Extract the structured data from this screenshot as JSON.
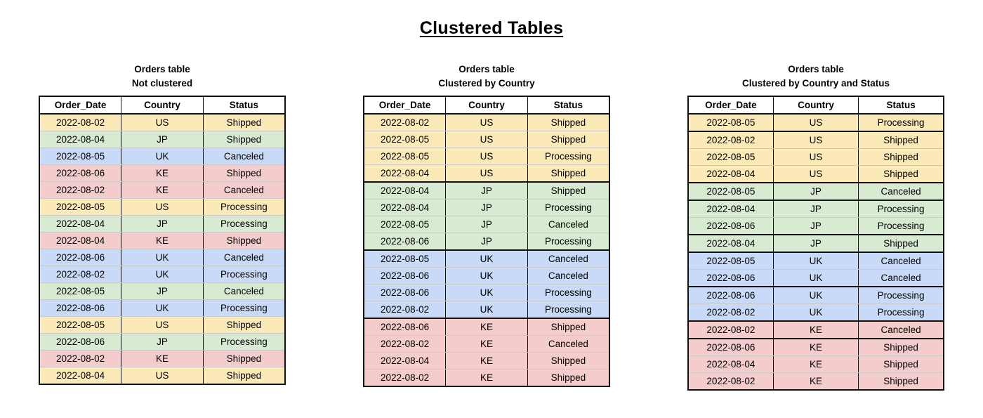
{
  "page_title": "Clustered Tables",
  "row_colors": {
    "US": "#fce9b8",
    "JP": "#d9ead3",
    "UK": "#c9daf8",
    "KE": "#f4cccc"
  },
  "border_colors": {
    "dark": "#111111",
    "light": "#c9c9c9"
  },
  "tables": [
    {
      "caption_line1": "Orders table",
      "caption_line2": "Not clustered",
      "columns": [
        "Order_Date",
        "Country",
        "Status"
      ],
      "rows": [
        {
          "date": "2022-08-02",
          "country": "US",
          "status": "Shipped",
          "cluster_start": false
        },
        {
          "date": "2022-08-04",
          "country": "JP",
          "status": "Shipped",
          "cluster_start": false
        },
        {
          "date": "2022-08-05",
          "country": "UK",
          "status": "Canceled",
          "cluster_start": false
        },
        {
          "date": "2022-08-06",
          "country": "KE",
          "status": "Shipped",
          "cluster_start": false
        },
        {
          "date": "2022-08-02",
          "country": "KE",
          "status": "Canceled",
          "cluster_start": false
        },
        {
          "date": "2022-08-05",
          "country": "US",
          "status": "Processing",
          "cluster_start": false
        },
        {
          "date": "2022-08-04",
          "country": "JP",
          "status": "Processing",
          "cluster_start": false
        },
        {
          "date": "2022-08-04",
          "country": "KE",
          "status": "Shipped",
          "cluster_start": false
        },
        {
          "date": "2022-08-06",
          "country": "UK",
          "status": "Canceled",
          "cluster_start": false
        },
        {
          "date": "2022-08-02",
          "country": "UK",
          "status": "Processing",
          "cluster_start": false
        },
        {
          "date": "2022-08-05",
          "country": "JP",
          "status": "Canceled",
          "cluster_start": false
        },
        {
          "date": "2022-08-06",
          "country": "UK",
          "status": "Processing",
          "cluster_start": false
        },
        {
          "date": "2022-08-05",
          "country": "US",
          "status": "Shipped",
          "cluster_start": false
        },
        {
          "date": "2022-08-06",
          "country": "JP",
          "status": "Processing",
          "cluster_start": false
        },
        {
          "date": "2022-08-02",
          "country": "KE",
          "status": "Shipped",
          "cluster_start": false
        },
        {
          "date": "2022-08-04",
          "country": "US",
          "status": "Shipped",
          "cluster_start": false
        }
      ]
    },
    {
      "caption_line1": "Orders table",
      "caption_line2": "Clustered by Country",
      "columns": [
        "Order_Date",
        "Country",
        "Status"
      ],
      "rows": [
        {
          "date": "2022-08-02",
          "country": "US",
          "status": "Shipped",
          "cluster_start": false
        },
        {
          "date": "2022-08-05",
          "country": "US",
          "status": "Shipped",
          "cluster_start": false
        },
        {
          "date": "2022-08-05",
          "country": "US",
          "status": "Processing",
          "cluster_start": false
        },
        {
          "date": "2022-08-04",
          "country": "US",
          "status": "Shipped",
          "cluster_start": false
        },
        {
          "date": "2022-08-04",
          "country": "JP",
          "status": "Shipped",
          "cluster_start": true
        },
        {
          "date": "2022-08-04",
          "country": "JP",
          "status": "Processing",
          "cluster_start": false
        },
        {
          "date": "2022-08-05",
          "country": "JP",
          "status": "Canceled",
          "cluster_start": false
        },
        {
          "date": "2022-08-06",
          "country": "JP",
          "status": "Processing",
          "cluster_start": false
        },
        {
          "date": "2022-08-05",
          "country": "UK",
          "status": "Canceled",
          "cluster_start": true
        },
        {
          "date": "2022-08-06",
          "country": "UK",
          "status": "Canceled",
          "cluster_start": false
        },
        {
          "date": "2022-08-06",
          "country": "UK",
          "status": "Processing",
          "cluster_start": false
        },
        {
          "date": "2022-08-02",
          "country": "UK",
          "status": "Processing",
          "cluster_start": false
        },
        {
          "date": "2022-08-06",
          "country": "KE",
          "status": "Shipped",
          "cluster_start": true
        },
        {
          "date": "2022-08-02",
          "country": "KE",
          "status": "Canceled",
          "cluster_start": false
        },
        {
          "date": "2022-08-04",
          "country": "KE",
          "status": "Shipped",
          "cluster_start": false
        },
        {
          "date": "2022-08-02",
          "country": "KE",
          "status": "Shipped",
          "cluster_start": false
        }
      ]
    },
    {
      "caption_line1": "Orders table",
      "caption_line2": "Clustered by Country and Status",
      "columns": [
        "Order_Date",
        "Country",
        "Status"
      ],
      "rows": [
        {
          "date": "2022-08-05",
          "country": "US",
          "status": "Processing",
          "cluster_start": false
        },
        {
          "date": "2022-08-02",
          "country": "US",
          "status": "Shipped",
          "cluster_start": true
        },
        {
          "date": "2022-08-05",
          "country": "US",
          "status": "Shipped",
          "cluster_start": false
        },
        {
          "date": "2022-08-04",
          "country": "US",
          "status": "Shipped",
          "cluster_start": false
        },
        {
          "date": "2022-08-05",
          "country": "JP",
          "status": "Canceled",
          "cluster_start": true
        },
        {
          "date": "2022-08-04",
          "country": "JP",
          "status": "Processing",
          "cluster_start": true
        },
        {
          "date": "2022-08-06",
          "country": "JP",
          "status": "Processing",
          "cluster_start": false
        },
        {
          "date": "2022-08-04",
          "country": "JP",
          "status": "Shipped",
          "cluster_start": true
        },
        {
          "date": "2022-08-05",
          "country": "UK",
          "status": "Canceled",
          "cluster_start": true
        },
        {
          "date": "2022-08-06",
          "country": "UK",
          "status": "Canceled",
          "cluster_start": false
        },
        {
          "date": "2022-08-06",
          "country": "UK",
          "status": "Processing",
          "cluster_start": true
        },
        {
          "date": "2022-08-02",
          "country": "UK",
          "status": "Processing",
          "cluster_start": false
        },
        {
          "date": "2022-08-02",
          "country": "KE",
          "status": "Canceled",
          "cluster_start": true
        },
        {
          "date": "2022-08-06",
          "country": "KE",
          "status": "Shipped",
          "cluster_start": true
        },
        {
          "date": "2022-08-04",
          "country": "KE",
          "status": "Shipped",
          "cluster_start": false
        },
        {
          "date": "2022-08-02",
          "country": "KE",
          "status": "Shipped",
          "cluster_start": false
        }
      ]
    }
  ]
}
